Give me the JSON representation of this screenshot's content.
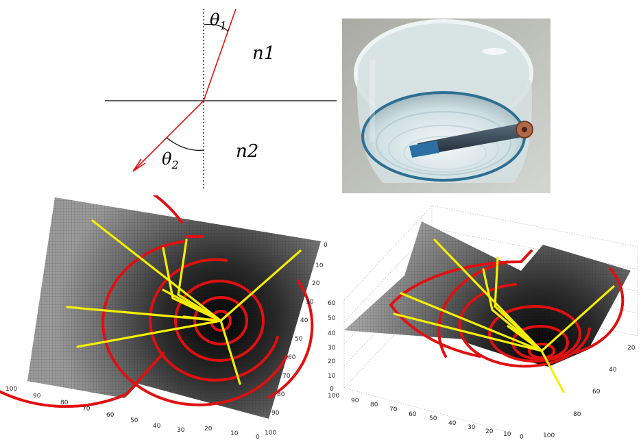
{
  "refraction": {
    "theta1": "θ",
    "theta1_sub": "1",
    "theta2": "θ",
    "theta2_sub": "2",
    "n1": "n1",
    "n2": "n2"
  },
  "surface_left": {
    "x_ticks": [
      "100",
      "90",
      "80",
      "70",
      "60",
      "50",
      "40",
      "30",
      "20",
      "10",
      "0"
    ],
    "y_ticks": [
      "0",
      "10",
      "20",
      "30",
      "40",
      "50",
      "60",
      "70",
      "80",
      "90",
      "100"
    ]
  },
  "surface_right": {
    "x_ticks": [
      "100",
      "90",
      "80",
      "70",
      "60",
      "50",
      "40",
      "30",
      "20",
      "10",
      "0"
    ],
    "y_ticks": [
      "20",
      "40",
      "60",
      "80",
      "100"
    ],
    "z_ticks": [
      "0",
      "10",
      "20",
      "30",
      "40",
      "50",
      "60"
    ]
  },
  "colors": {
    "ray": "#e01010",
    "contour": "#e01010",
    "geodesic": "#f4f000",
    "surface_dark": "#141414",
    "surface_light": "#a8a8a8"
  }
}
